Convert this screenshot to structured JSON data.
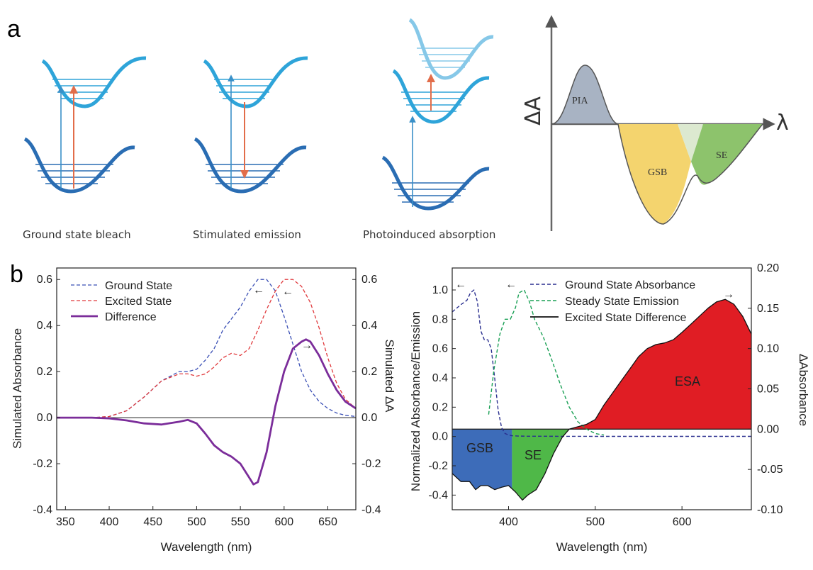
{
  "panel_a": {
    "letter": "a",
    "captions": [
      "Ground state bleach",
      "Stimulated emission",
      "Photoinduced absorption"
    ],
    "schematic": {
      "y_axis_label": "ΔA",
      "x_axis_label": "λ",
      "regions": [
        "PIA",
        "GSB",
        "SE"
      ]
    }
  },
  "panel_b": {
    "letter": "b"
  },
  "chart_data": [
    {
      "type": "line",
      "xlabel": "Wavelength (nm)",
      "ylabel": "Simulated Absorbance",
      "ylabel_right": "Simulated ΔA",
      "xlim": [
        340,
        682
      ],
      "ylim": [
        -0.4,
        0.65
      ],
      "ylim_right": [
        -0.4,
        0.65
      ],
      "xticks": [
        350,
        400,
        450,
        500,
        550,
        600,
        650
      ],
      "yticks": [
        -0.4,
        -0.2,
        0.0,
        0.2,
        0.4,
        0.6
      ],
      "yticks_right": [
        -0.4,
        -0.2,
        0.0,
        0.2,
        0.4,
        0.6
      ],
      "legend_position": "top-left",
      "colors": {
        "ground": "#3a4fb5",
        "excited": "#e0393c",
        "difference": "#7b2d9a"
      },
      "series": [
        {
          "name": "Ground State",
          "style": "dashed",
          "x": [
            340,
            380,
            400,
            420,
            440,
            460,
            480,
            490,
            500,
            510,
            520,
            530,
            540,
            550,
            560,
            570,
            580,
            590,
            600,
            610,
            620,
            630,
            640,
            650,
            660,
            670,
            682
          ],
          "y": [
            0,
            0,
            0.005,
            0.03,
            0.09,
            0.16,
            0.2,
            0.2,
            0.21,
            0.25,
            0.3,
            0.38,
            0.43,
            0.48,
            0.55,
            0.6,
            0.6,
            0.55,
            0.44,
            0.32,
            0.2,
            0.12,
            0.07,
            0.04,
            0.02,
            0.01,
            0.005
          ]
        },
        {
          "name": "Excited State",
          "style": "dashed",
          "x": [
            340,
            380,
            400,
            420,
            440,
            460,
            480,
            490,
            500,
            510,
            520,
            530,
            540,
            550,
            560,
            570,
            580,
            590,
            600,
            610,
            620,
            630,
            640,
            650,
            660,
            670,
            682
          ],
          "y": [
            0,
            0,
            0.005,
            0.03,
            0.09,
            0.16,
            0.19,
            0.19,
            0.18,
            0.19,
            0.22,
            0.26,
            0.28,
            0.27,
            0.3,
            0.38,
            0.47,
            0.55,
            0.6,
            0.6,
            0.57,
            0.5,
            0.39,
            0.26,
            0.15,
            0.08,
            0.04
          ]
        },
        {
          "name": "Difference",
          "style": "solid",
          "x": [
            340,
            380,
            400,
            420,
            440,
            460,
            480,
            490,
            500,
            510,
            520,
            530,
            540,
            550,
            560,
            565,
            570,
            580,
            590,
            600,
            610,
            620,
            625,
            630,
            640,
            650,
            660,
            670,
            682
          ],
          "y": [
            0,
            0,
            -0.003,
            -0.012,
            -0.025,
            -0.03,
            -0.018,
            -0.01,
            -0.025,
            -0.07,
            -0.12,
            -0.15,
            -0.17,
            -0.2,
            -0.26,
            -0.29,
            -0.28,
            -0.15,
            0.05,
            0.2,
            0.3,
            0.33,
            0.34,
            0.33,
            0.27,
            0.19,
            0.12,
            0.07,
            0.04
          ]
        }
      ],
      "annotations": [
        "←",
        "←",
        "→"
      ]
    },
    {
      "type": "area",
      "xlabel": "Wavelength (nm)",
      "ylabel": "Normalized Absorbance/Emission",
      "ylabel_right": "ΔAbsorbance",
      "xlim": [
        335,
        680
      ],
      "ylim": [
        -0.5,
        1.15
      ],
      "ylim_right": [
        -0.1,
        0.2
      ],
      "xticks": [
        400,
        500,
        600
      ],
      "yticks": [
        -0.4,
        -0.2,
        0.0,
        0.2,
        0.4,
        0.6,
        0.8,
        1.0
      ],
      "yticks_right": [
        -0.1,
        -0.05,
        0.0,
        0.05,
        0.1,
        0.15,
        0.2
      ],
      "yticks_right_labels": [
        "-0.10",
        "-0.05",
        "0.00",
        "0.05",
        "0.10",
        "0.15",
        "0.20"
      ],
      "legend_position": "top",
      "colors": {
        "absorbance": "#2a2f8f",
        "emission": "#1aa055",
        "difference": "#111111",
        "GSB": "#3d6cb9",
        "SE": "#4fb848",
        "ESA": "#e01d24"
      },
      "regions": [
        "GSB",
        "SE",
        "ESA"
      ],
      "series": [
        {
          "name": "Ground State Absorbance",
          "style": "dashed",
          "axis": "left",
          "x": [
            335,
            345,
            352,
            356,
            360,
            364,
            368,
            372,
            376,
            380,
            384,
            388,
            392,
            396,
            400,
            404,
            410,
            420,
            500,
            680
          ],
          "y": [
            0.85,
            0.9,
            0.93,
            0.98,
            1.0,
            0.92,
            0.72,
            0.66,
            0.66,
            0.6,
            0.4,
            0.18,
            0.06,
            0.02,
            0.01,
            0.005,
            0.003,
            0.002,
            0.001,
            0.001
          ]
        },
        {
          "name": "Steady State Emission",
          "style": "dashed",
          "axis": "left",
          "x": [
            377,
            383,
            390,
            396,
            402,
            408,
            412,
            418,
            424,
            430,
            440,
            450,
            460,
            470,
            480,
            490,
            500,
            510
          ],
          "y": [
            0.15,
            0.45,
            0.7,
            0.8,
            0.8,
            0.88,
            0.98,
            1.0,
            0.92,
            0.8,
            0.68,
            0.52,
            0.35,
            0.2,
            0.1,
            0.05,
            0.02,
            0.01
          ]
        },
        {
          "name": "Excited State Difference",
          "style": "solid",
          "axis": "right",
          "x": [
            335,
            345,
            355,
            362,
            368,
            376,
            384,
            392,
            400,
            408,
            416,
            422,
            432,
            442,
            452,
            462,
            470,
            480,
            490,
            500,
            510,
            520,
            530,
            540,
            550,
            560,
            570,
            580,
            590,
            600,
            610,
            620,
            630,
            640,
            650,
            660,
            670,
            680
          ],
          "y": [
            -0.055,
            -0.065,
            -0.065,
            -0.075,
            -0.07,
            -0.07,
            -0.075,
            -0.072,
            -0.07,
            -0.078,
            -0.088,
            -0.082,
            -0.075,
            -0.055,
            -0.03,
            -0.01,
            0.0,
            0.003,
            0.006,
            0.012,
            0.03,
            0.045,
            0.06,
            0.075,
            0.09,
            0.1,
            0.105,
            0.107,
            0.111,
            0.12,
            0.13,
            0.14,
            0.15,
            0.158,
            0.161,
            0.155,
            0.14,
            0.118
          ]
        }
      ],
      "annotations": [
        "←",
        "←",
        "→"
      ]
    }
  ]
}
